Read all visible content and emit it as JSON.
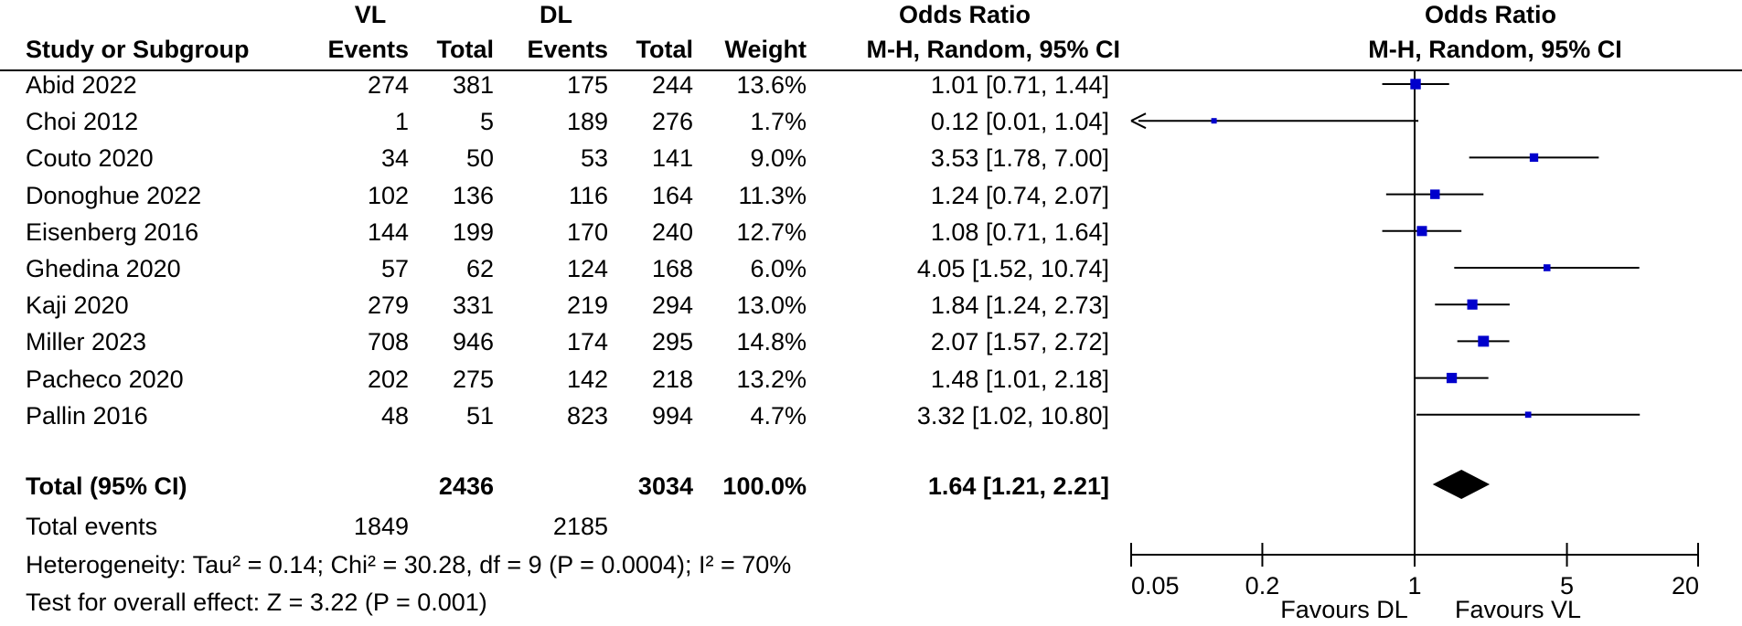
{
  "headers": {
    "group1": "VL",
    "group2": "DL",
    "odds_ratio": "Odds Ratio",
    "study": "Study or Subgroup",
    "events": "Events",
    "total": "Total",
    "weight": "Weight",
    "method": "M-H, Random, 95% CI"
  },
  "plot_headers": {
    "title": "Odds Ratio",
    "method": "M-H, Random, 95% CI"
  },
  "studies": [
    {
      "name": "Abid 2022",
      "vl_events": "274",
      "vl_total": "381",
      "dl_events": "175",
      "dl_total": "244",
      "weight": "13.6%",
      "ci_text": "1.01 [0.71, 1.44]"
    },
    {
      "name": "Choi 2012",
      "vl_events": "1",
      "vl_total": "5",
      "dl_events": "189",
      "dl_total": "276",
      "weight": "1.7%",
      "ci_text": "0.12 [0.01, 1.04]"
    },
    {
      "name": "Couto 2020",
      "vl_events": "34",
      "vl_total": "50",
      "dl_events": "53",
      "dl_total": "141",
      "weight": "9.0%",
      "ci_text": "3.53 [1.78, 7.00]"
    },
    {
      "name": "Donoghue 2022",
      "vl_events": "102",
      "vl_total": "136",
      "dl_events": "116",
      "dl_total": "164",
      "weight": "11.3%",
      "ci_text": "1.24 [0.74, 2.07]"
    },
    {
      "name": "Eisenberg 2016",
      "vl_events": "144",
      "vl_total": "199",
      "dl_events": "170",
      "dl_total": "240",
      "weight": "12.7%",
      "ci_text": "1.08 [0.71, 1.64]"
    },
    {
      "name": "Ghedina 2020",
      "vl_events": "57",
      "vl_total": "62",
      "dl_events": "124",
      "dl_total": "168",
      "weight": "6.0%",
      "ci_text": "4.05 [1.52, 10.74]"
    },
    {
      "name": "Kaji 2020",
      "vl_events": "279",
      "vl_total": "331",
      "dl_events": "219",
      "dl_total": "294",
      "weight": "13.0%",
      "ci_text": "1.84 [1.24, 2.73]"
    },
    {
      "name": "Miller 2023",
      "vl_events": "708",
      "vl_total": "946",
      "dl_events": "174",
      "dl_total": "295",
      "weight": "14.8%",
      "ci_text": "2.07 [1.57, 2.72]"
    },
    {
      "name": "Pacheco 2020",
      "vl_events": "202",
      "vl_total": "275",
      "dl_events": "142",
      "dl_total": "218",
      "weight": "13.2%",
      "ci_text": "1.48 [1.01, 2.18]"
    },
    {
      "name": "Pallin 2016",
      "vl_events": "48",
      "vl_total": "51",
      "dl_events": "823",
      "dl_total": "994",
      "weight": "4.7%",
      "ci_text": "3.32 [1.02, 10.80]"
    }
  ],
  "total": {
    "label": "Total (95% CI)",
    "vl_total": "2436",
    "dl_total": "3034",
    "weight": "100.0%",
    "ci_text": "1.64 [1.21, 2.21]"
  },
  "total_events": {
    "label": "Total events",
    "vl": "1849",
    "dl": "2185"
  },
  "heterogeneity": "Heterogeneity: Tau² = 0.14; Chi² = 30.28, df = 9 (P = 0.0004); I² = 70%",
  "overall_effect": "Test for overall effect: Z = 3.22 (P = 0.001)",
  "favours": {
    "left": "Favours DL",
    "right": "Favours VL"
  },
  "chart_data": {
    "type": "forest",
    "scale": "log",
    "xlim": [
      0.05,
      20
    ],
    "xticks": [
      0.05,
      0.2,
      1,
      5,
      20
    ],
    "xtick_labels": [
      "0.05",
      "0.2",
      "1",
      "5",
      "20"
    ],
    "reference_line": 1,
    "marker_color": "#0000cc",
    "points": [
      {
        "name": "Abid 2022",
        "or": 1.01,
        "lo": 0.71,
        "hi": 1.44,
        "weight": 13.6
      },
      {
        "name": "Choi 2012",
        "or": 0.12,
        "lo": 0.01,
        "hi": 1.04,
        "weight": 1.7
      },
      {
        "name": "Couto 2020",
        "or": 3.53,
        "lo": 1.78,
        "hi": 7.0,
        "weight": 9.0
      },
      {
        "name": "Donoghue 2022",
        "or": 1.24,
        "lo": 0.74,
        "hi": 2.07,
        "weight": 11.3
      },
      {
        "name": "Eisenberg 2016",
        "or": 1.08,
        "lo": 0.71,
        "hi": 1.64,
        "weight": 12.7
      },
      {
        "name": "Ghedina 2020",
        "or": 4.05,
        "lo": 1.52,
        "hi": 10.74,
        "weight": 6.0
      },
      {
        "name": "Kaji 2020",
        "or": 1.84,
        "lo": 1.24,
        "hi": 2.73,
        "weight": 13.0
      },
      {
        "name": "Miller 2023",
        "or": 2.07,
        "lo": 1.57,
        "hi": 2.72,
        "weight": 14.8
      },
      {
        "name": "Pacheco 2020",
        "or": 1.48,
        "lo": 1.01,
        "hi": 2.18,
        "weight": 13.2
      },
      {
        "name": "Pallin 2016",
        "or": 3.32,
        "lo": 1.02,
        "hi": 10.8,
        "weight": 4.7
      }
    ],
    "summary": {
      "or": 1.64,
      "lo": 1.21,
      "hi": 2.21
    }
  }
}
